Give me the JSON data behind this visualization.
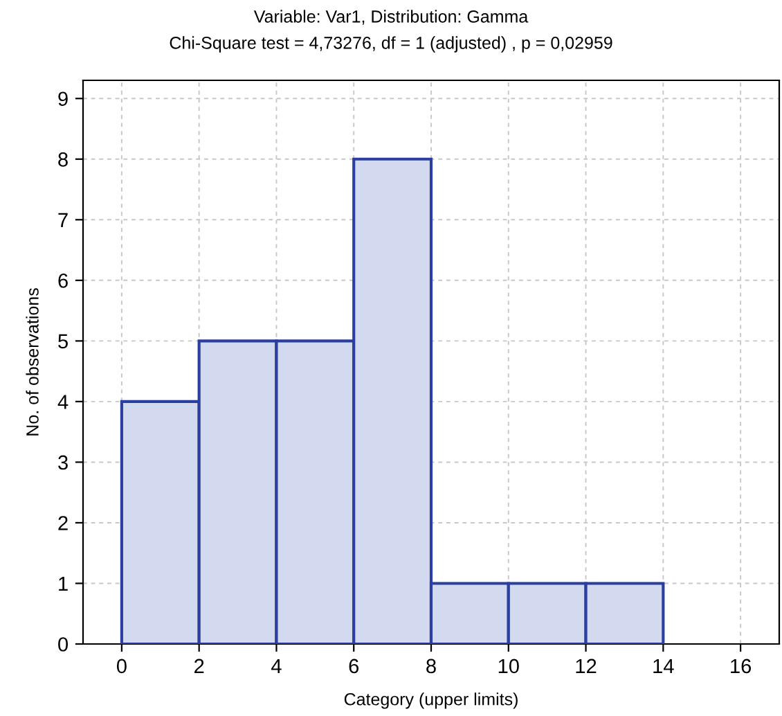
{
  "chart_data": {
    "type": "histogram",
    "title": "Variable: Var1, Distribution: Gamma",
    "subtitle": "Chi-Square test = 4,73276, df = 1 (adjusted) , p = 0,02959",
    "xlabel": "Category (upper limits)",
    "ylabel": "No. of observations",
    "bins": [
      0,
      2,
      4,
      6,
      8,
      10,
      12,
      14
    ],
    "values": [
      4,
      5,
      5,
      8,
      1,
      1,
      1
    ],
    "color": "#d3daef",
    "xlim": [
      -1,
      17
    ],
    "xticks": [
      0,
      2,
      4,
      6,
      8,
      10,
      12,
      14,
      16
    ],
    "ylim": [
      0,
      9.3
    ],
    "yticks": [
      0,
      1,
      2,
      3,
      4,
      5,
      6,
      7,
      8,
      9
    ],
    "grid": true
  }
}
